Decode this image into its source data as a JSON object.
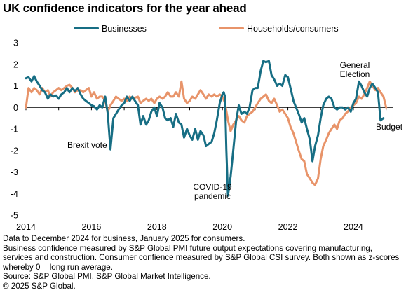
{
  "title": "UK confidence indicators for the year ahead",
  "colors": {
    "businesses": "#176e84",
    "households": "#e8946a",
    "axis": "#000000"
  },
  "chart_data": {
    "type": "line",
    "title": "UK confidence indicators for the year ahead",
    "xlabel": "",
    "ylabel": "",
    "xlim": [
      2014.0,
      2025.2
    ],
    "ylim": [
      -5,
      3
    ],
    "grid": false,
    "legend_position": "top",
    "x_ticks": [
      "2014",
      "2016",
      "2018",
      "2020",
      "2022",
      "2024"
    ],
    "y_ticks": [
      "3",
      "2",
      "1",
      "0",
      "-1",
      "-2",
      "-3",
      "-4",
      "-5"
    ],
    "series": [
      {
        "name": "Businesses",
        "points": [
          [
            2014.0,
            1.35
          ],
          [
            2014.08,
            1.4
          ],
          [
            2014.17,
            1.2
          ],
          [
            2014.25,
            1.45
          ],
          [
            2014.33,
            1.2
          ],
          [
            2014.42,
            1.0
          ],
          [
            2014.5,
            0.8
          ],
          [
            2014.58,
            0.7
          ],
          [
            2014.67,
            0.4
          ],
          [
            2014.75,
            0.6
          ],
          [
            2014.83,
            0.5
          ],
          [
            2014.92,
            0.55
          ],
          [
            2015.0,
            0.4
          ],
          [
            2015.08,
            0.6
          ],
          [
            2015.17,
            0.7
          ],
          [
            2015.25,
            0.9
          ],
          [
            2015.33,
            0.7
          ],
          [
            2015.42,
            0.9
          ],
          [
            2015.5,
            0.75
          ],
          [
            2015.58,
            0.9
          ],
          [
            2015.67,
            0.6
          ],
          [
            2015.75,
            0.4
          ],
          [
            2015.83,
            0.3
          ],
          [
            2015.92,
            0.2
          ],
          [
            2016.0,
            0.1
          ],
          [
            2016.08,
            0.05
          ],
          [
            2016.17,
            -0.1
          ],
          [
            2016.25,
            0.1
          ],
          [
            2016.33,
            0.0
          ],
          [
            2016.42,
            0.5
          ],
          [
            2016.5,
            -0.3
          ],
          [
            2016.58,
            -1.95
          ],
          [
            2016.67,
            -0.5
          ],
          [
            2016.75,
            -0.3
          ],
          [
            2016.83,
            -0.1
          ],
          [
            2016.92,
            0.1
          ],
          [
            2017.0,
            0.2
          ],
          [
            2017.08,
            0.5
          ],
          [
            2017.17,
            0.3
          ],
          [
            2017.25,
            0.5
          ],
          [
            2017.33,
            0.3
          ],
          [
            2017.42,
            0.1
          ],
          [
            2017.5,
            -0.8
          ],
          [
            2017.58,
            -0.4
          ],
          [
            2017.67,
            -0.8
          ],
          [
            2017.75,
            -0.6
          ],
          [
            2017.83,
            -0.2
          ],
          [
            2017.92,
            0.0
          ],
          [
            2018.0,
            -0.4
          ],
          [
            2018.08,
            0.2
          ],
          [
            2018.17,
            0.0
          ],
          [
            2018.25,
            -0.5
          ],
          [
            2018.33,
            -0.6
          ],
          [
            2018.42,
            -0.5
          ],
          [
            2018.5,
            -0.9
          ],
          [
            2018.58,
            -0.3
          ],
          [
            2018.67,
            -0.7
          ],
          [
            2018.75,
            -0.8
          ],
          [
            2018.83,
            -1.4
          ],
          [
            2018.92,
            -1.0
          ],
          [
            2019.0,
            -1.3
          ],
          [
            2019.08,
            -1.5
          ],
          [
            2019.17,
            -1.0
          ],
          [
            2019.25,
            -1.5
          ],
          [
            2019.33,
            -1.1
          ],
          [
            2019.42,
            -1.3
          ],
          [
            2019.5,
            -1.8
          ],
          [
            2019.58,
            -1.7
          ],
          [
            2019.67,
            -1.6
          ],
          [
            2019.75,
            -1.2
          ],
          [
            2019.83,
            -0.6
          ],
          [
            2019.92,
            0.2
          ],
          [
            2020.0,
            0.6
          ],
          [
            2020.04,
            0.7
          ],
          [
            2020.08,
            0.5
          ],
          [
            2020.12,
            -2.0
          ],
          [
            2020.17,
            -4.1
          ],
          [
            2020.25,
            -3.2
          ],
          [
            2020.33,
            -2.0
          ],
          [
            2020.42,
            -0.6
          ],
          [
            2020.5,
            0.1
          ],
          [
            2020.58,
            -0.3
          ],
          [
            2020.67,
            -0.2
          ],
          [
            2020.75,
            -0.3
          ],
          [
            2020.83,
            0.0
          ],
          [
            2020.92,
            0.8
          ],
          [
            2021.0,
            0.9
          ],
          [
            2021.08,
            0.9
          ],
          [
            2021.17,
            1.7
          ],
          [
            2021.25,
            2.15
          ],
          [
            2021.33,
            2.1
          ],
          [
            2021.42,
            2.15
          ],
          [
            2021.5,
            1.5
          ],
          [
            2021.58,
            1.3
          ],
          [
            2021.67,
            1.0
          ],
          [
            2021.75,
            1.1
          ],
          [
            2021.83,
            1.0
          ],
          [
            2021.92,
            1.5
          ],
          [
            2022.0,
            1.4
          ],
          [
            2022.08,
            0.9
          ],
          [
            2022.17,
            0.3
          ],
          [
            2022.25,
            0.0
          ],
          [
            2022.33,
            -0.3
          ],
          [
            2022.42,
            -0.7
          ],
          [
            2022.5,
            -0.5
          ],
          [
            2022.58,
            -1.0
          ],
          [
            2022.67,
            -1.5
          ],
          [
            2022.75,
            -2.5
          ],
          [
            2022.83,
            -1.8
          ],
          [
            2022.92,
            -1.3
          ],
          [
            2023.0,
            -0.5
          ],
          [
            2023.08,
            0.1
          ],
          [
            2023.17,
            0.4
          ],
          [
            2023.25,
            0.5
          ],
          [
            2023.33,
            0.4
          ],
          [
            2023.42,
            0.0
          ],
          [
            2023.5,
            -0.1
          ],
          [
            2023.58,
            0.0
          ],
          [
            2023.67,
            0.0
          ],
          [
            2023.75,
            -0.1
          ],
          [
            2023.83,
            0.0
          ],
          [
            2023.92,
            -0.2
          ],
          [
            2024.0,
            0.2
          ],
          [
            2024.08,
            0.4
          ],
          [
            2024.17,
            1.2
          ],
          [
            2024.25,
            1.0
          ],
          [
            2024.33,
            0.7
          ],
          [
            2024.42,
            0.5
          ],
          [
            2024.5,
            0.9
          ],
          [
            2024.58,
            1.1
          ],
          [
            2024.67,
            0.9
          ],
          [
            2024.75,
            0.7
          ],
          [
            2024.83,
            -0.6
          ],
          [
            2024.92,
            -0.5
          ]
        ]
      },
      {
        "name": "Households/consumers",
        "points": [
          [
            2014.0,
            0.0
          ],
          [
            2014.08,
            0.9
          ],
          [
            2014.17,
            0.7
          ],
          [
            2014.25,
            0.9
          ],
          [
            2014.33,
            0.8
          ],
          [
            2014.42,
            0.6
          ],
          [
            2014.5,
            0.9
          ],
          [
            2014.58,
            0.7
          ],
          [
            2014.67,
            0.8
          ],
          [
            2014.75,
            0.5
          ],
          [
            2014.83,
            0.7
          ],
          [
            2014.92,
            0.8
          ],
          [
            2015.0,
            0.9
          ],
          [
            2015.08,
            0.8
          ],
          [
            2015.17,
            0.9
          ],
          [
            2015.25,
            1.0
          ],
          [
            2015.33,
            1.05
          ],
          [
            2015.42,
            0.9
          ],
          [
            2015.5,
            0.7
          ],
          [
            2015.58,
            0.8
          ],
          [
            2015.67,
            0.8
          ],
          [
            2015.75,
            0.7
          ],
          [
            2015.83,
            0.8
          ],
          [
            2015.92,
            0.9
          ],
          [
            2016.0,
            0.5
          ],
          [
            2016.08,
            0.7
          ],
          [
            2016.17,
            0.4
          ],
          [
            2016.25,
            0.5
          ],
          [
            2016.33,
            0.5
          ],
          [
            2016.42,
            0.3
          ],
          [
            2016.5,
            -0.2
          ],
          [
            2016.58,
            0.1
          ],
          [
            2016.67,
            0.3
          ],
          [
            2016.75,
            0.5
          ],
          [
            2016.83,
            0.4
          ],
          [
            2016.92,
            0.3
          ],
          [
            2017.0,
            0.4
          ],
          [
            2017.08,
            0.3
          ],
          [
            2017.17,
            0.5
          ],
          [
            2017.25,
            0.4
          ],
          [
            2017.33,
            0.45
          ],
          [
            2017.42,
            0.5
          ],
          [
            2017.5,
            0.2
          ],
          [
            2017.58,
            0.3
          ],
          [
            2017.67,
            0.4
          ],
          [
            2017.75,
            0.3
          ],
          [
            2017.83,
            0.4
          ],
          [
            2017.92,
            0.2
          ],
          [
            2018.0,
            0.4
          ],
          [
            2018.08,
            0.5
          ],
          [
            2018.17,
            0.4
          ],
          [
            2018.25,
            0.5
          ],
          [
            2018.33,
            0.7
          ],
          [
            2018.42,
            0.5
          ],
          [
            2018.5,
            0.5
          ],
          [
            2018.58,
            0.7
          ],
          [
            2018.67,
            0.5
          ],
          [
            2018.75,
            1.2
          ],
          [
            2018.83,
            0.4
          ],
          [
            2018.92,
            0.2
          ],
          [
            2019.0,
            0.3
          ],
          [
            2019.08,
            0.5
          ],
          [
            2019.17,
            0.4
          ],
          [
            2019.25,
            0.6
          ],
          [
            2019.33,
            0.8
          ],
          [
            2019.42,
            0.6
          ],
          [
            2019.5,
            0.4
          ],
          [
            2019.58,
            0.6
          ],
          [
            2019.67,
            0.5
          ],
          [
            2019.75,
            0.6
          ],
          [
            2019.83,
            0.5
          ],
          [
            2019.92,
            0.6
          ],
          [
            2020.0,
            0.5
          ],
          [
            2020.08,
            0.2
          ],
          [
            2020.17,
            -0.6
          ],
          [
            2020.25,
            -1.1
          ],
          [
            2020.33,
            -0.8
          ],
          [
            2020.42,
            -0.6
          ],
          [
            2020.5,
            -0.4
          ],
          [
            2020.58,
            -0.6
          ],
          [
            2020.67,
            -0.7
          ],
          [
            2020.75,
            -0.4
          ],
          [
            2020.83,
            -0.3
          ],
          [
            2020.92,
            -0.2
          ],
          [
            2021.0,
            0.0
          ],
          [
            2021.08,
            0.2
          ],
          [
            2021.17,
            0.4
          ],
          [
            2021.25,
            0.5
          ],
          [
            2021.33,
            0.6
          ],
          [
            2021.42,
            0.3
          ],
          [
            2021.5,
            0.2
          ],
          [
            2021.58,
            0.4
          ],
          [
            2021.67,
            0.1
          ],
          [
            2021.75,
            -0.2
          ],
          [
            2021.83,
            -0.1
          ],
          [
            2021.92,
            -0.3
          ],
          [
            2022.0,
            -0.5
          ],
          [
            2022.08,
            -0.9
          ],
          [
            2022.17,
            -1.2
          ],
          [
            2022.25,
            -1.6
          ],
          [
            2022.33,
            -2.0
          ],
          [
            2022.42,
            -2.4
          ],
          [
            2022.5,
            -2.5
          ],
          [
            2022.58,
            -3.1
          ],
          [
            2022.67,
            -3.3
          ],
          [
            2022.75,
            -3.5
          ],
          [
            2022.83,
            -3.6
          ],
          [
            2022.92,
            -3.3
          ],
          [
            2023.0,
            -2.4
          ],
          [
            2023.08,
            -1.8
          ],
          [
            2023.17,
            -1.5
          ],
          [
            2023.25,
            -1.2
          ],
          [
            2023.33,
            -1.0
          ],
          [
            2023.42,
            -0.8
          ],
          [
            2023.5,
            -1.0
          ],
          [
            2023.58,
            -0.6
          ],
          [
            2023.67,
            -0.5
          ],
          [
            2023.75,
            -0.3
          ],
          [
            2023.83,
            -0.2
          ],
          [
            2023.92,
            0.0
          ],
          [
            2024.0,
            0.1
          ],
          [
            2024.08,
            0.2
          ],
          [
            2024.17,
            0.5
          ],
          [
            2024.25,
            0.4
          ],
          [
            2024.33,
            0.6
          ],
          [
            2024.42,
            0.9
          ],
          [
            2024.5,
            1.2
          ],
          [
            2024.58,
            1.0
          ],
          [
            2024.67,
            0.8
          ],
          [
            2024.75,
            0.9
          ],
          [
            2024.83,
            0.7
          ],
          [
            2024.92,
            0.5
          ],
          [
            2025.0,
            0.0
          ]
        ]
      }
    ],
    "annotations": [
      {
        "id": "brexit",
        "text": "Brexit vote"
      },
      {
        "id": "covid",
        "lines": [
          "COVID-19",
          "pandemic"
        ]
      },
      {
        "id": "election",
        "lines": [
          "General",
          "Election"
        ]
      },
      {
        "id": "budget",
        "text": "Budget"
      }
    ]
  },
  "footnotes": [
    "Data to December 2024 for business, January 2025 for consumers.",
    "Business confidence measured by S&P Global PMI future output expectations covering manufacturing, services and construction. Consumer confience measured by S&P Global CSI survey. Both shown as z-scores whereby 0 = long run average.",
    "Source: S&P Global  PMI, S&P Global Market Intelligence.",
    "© 2025 S&P Global."
  ]
}
